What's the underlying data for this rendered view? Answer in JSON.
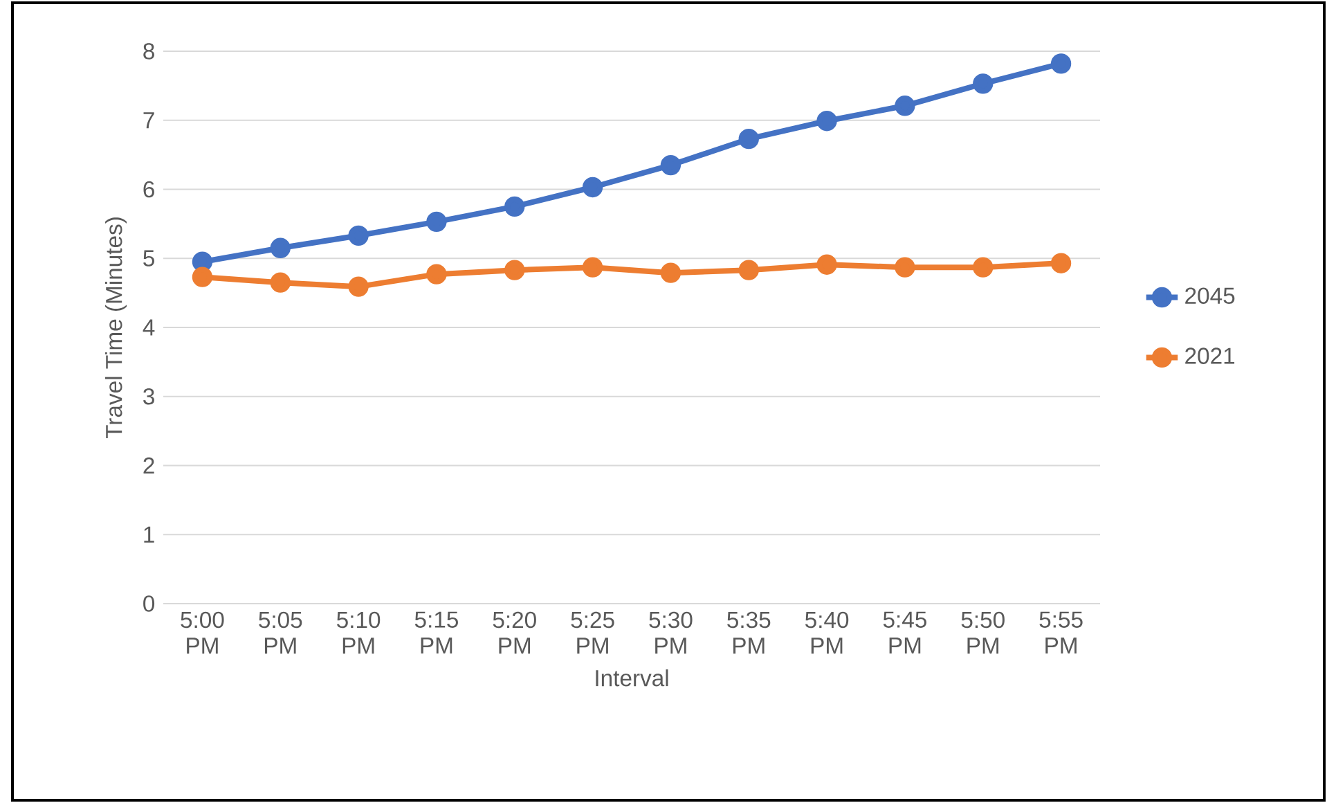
{
  "chart_data": {
    "type": "line",
    "xlabel": "Interval",
    "ylabel": "Travel Time (Minutes)",
    "categories": [
      "5:00 PM",
      "5:05 PM",
      "5:10 PM",
      "5:15 PM",
      "5:20 PM",
      "5:25 PM",
      "5:30 PM",
      "5:35 PM",
      "5:40 PM",
      "5:45 PM",
      "5:50 PM",
      "5:55 PM"
    ],
    "series": [
      {
        "name": "2045",
        "color": "#4472c4",
        "values": [
          4.95,
          5.15,
          5.33,
          5.53,
          5.75,
          6.03,
          6.35,
          6.73,
          6.99,
          7.21,
          7.53,
          7.82
        ]
      },
      {
        "name": "2021",
        "color": "#ed7d31",
        "values": [
          4.73,
          4.65,
          4.59,
          4.77,
          4.83,
          4.87,
          4.79,
          4.83,
          4.91,
          4.87,
          4.87,
          4.93
        ]
      }
    ],
    "ylim": [
      0,
      8
    ],
    "yticks": [
      0,
      1,
      2,
      3,
      4,
      5,
      6,
      7,
      8
    ],
    "grid": "y",
    "legend": "right",
    "marker": "circle",
    "line_style": "solid"
  }
}
